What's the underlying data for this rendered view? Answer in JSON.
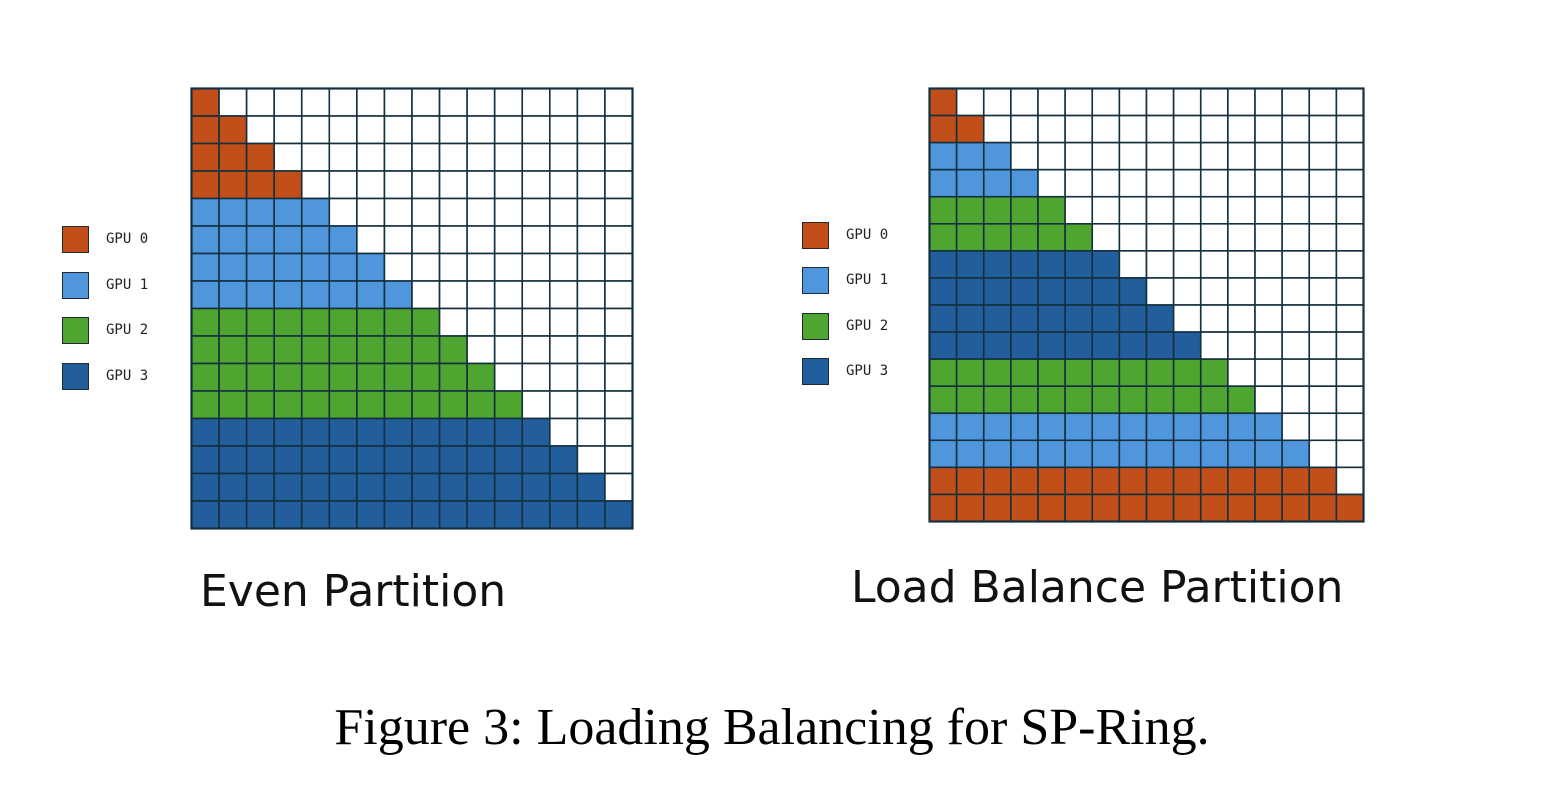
{
  "figure_caption": "Figure 3: Loading Balancing for SP-Ring.",
  "gpus": [
    {
      "id": 0,
      "label": "GPU 0",
      "color": "#c24f1a"
    },
    {
      "id": 1,
      "label": "GPU 1",
      "color": "#4f96dd"
    },
    {
      "id": 2,
      "label": "GPU 2",
      "color": "#4ea52f"
    },
    {
      "id": 3,
      "label": "GPU 3",
      "color": "#225e9c"
    }
  ],
  "grid_line_color": "#14303f",
  "empty_cell_color": "#ffffff",
  "panels": [
    {
      "key": "even",
      "caption": "Even Partition",
      "grid_size": 16,
      "row_gpu_assignment": [
        0,
        0,
        0,
        0,
        1,
        1,
        1,
        1,
        2,
        2,
        2,
        2,
        3,
        3,
        3,
        3
      ]
    },
    {
      "key": "balanced",
      "caption": "Load Balance Partition",
      "grid_size": 16,
      "row_gpu_assignment": [
        0,
        0,
        1,
        1,
        2,
        2,
        3,
        3,
        3,
        3,
        2,
        2,
        1,
        1,
        0,
        0
      ]
    }
  ]
}
